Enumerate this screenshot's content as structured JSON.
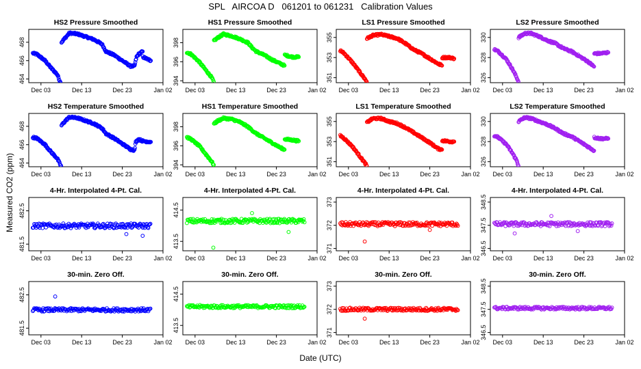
{
  "title": "SPL   AIRCOA D   061201 to 061231   Calibration Values",
  "ylabel": "Measured CO2 (ppm)",
  "xlabel": "Date (UTC)",
  "x_ticks": [
    {
      "label": "Dec 03",
      "day": 3
    },
    {
      "label": "Dec 13",
      "day": 13
    },
    {
      "label": "Dec 23",
      "day": 23
    },
    {
      "label": "Jan 02",
      "day": 33
    }
  ],
  "colors": {
    "HS2": "#0000ff",
    "HS1": "#00ff00",
    "LS1": "#ff0000",
    "LS2": "#a020f0"
  },
  "chart_data": [
    {
      "type": "scatter",
      "row": 0,
      "col": 0,
      "title": "HS2 Pressure Smoothed",
      "series": "HS2",
      "kind": "smooth",
      "ylim": [
        463.6,
        469.4
      ],
      "yticks": [
        464,
        466,
        468
      ],
      "points": [
        [
          1,
          466.8
        ],
        [
          2,
          466.7
        ],
        [
          4,
          466.0
        ],
        [
          5.5,
          465.2
        ],
        [
          7,
          464.5
        ],
        [
          8,
          463.4
        ],
        [
          8.05,
          468.0
        ],
        [
          8.8,
          468.4
        ],
        [
          10,
          469.0
        ],
        [
          12,
          468.9
        ],
        [
          14,
          468.6
        ],
        [
          16,
          468.3
        ],
        [
          18,
          467.8
        ],
        [
          19,
          467.0
        ],
        [
          21,
          466.6
        ],
        [
          23,
          466.0
        ],
        [
          25,
          465.4
        ],
        [
          26,
          465.4
        ],
        [
          26.5,
          466.4
        ],
        [
          27,
          466.7
        ],
        [
          28,
          467.0
        ],
        [
          28.05,
          466.4
        ],
        [
          29,
          466.2
        ],
        [
          30,
          466.0
        ]
      ]
    },
    {
      "type": "scatter",
      "row": 0,
      "col": 1,
      "title": "HS1 Pressure Smoothed",
      "series": "HS1",
      "kind": "smooth",
      "ylim": [
        393.8,
        399.4
      ],
      "yticks": [
        394,
        396,
        398
      ],
      "points": [
        [
          1,
          397.0
        ],
        [
          2,
          396.8
        ],
        [
          4,
          396.0
        ],
        [
          5.5,
          395.2
        ],
        [
          7,
          394.4
        ],
        [
          7.6,
          393.9
        ],
        [
          7.65,
          398.2
        ],
        [
          8.5,
          398.5
        ],
        [
          10,
          398.9
        ],
        [
          12,
          398.7
        ],
        [
          14,
          398.4
        ],
        [
          16,
          398.0
        ],
        [
          17,
          397.5
        ],
        [
          18,
          397.1
        ],
        [
          20,
          396.7
        ],
        [
          22,
          396.2
        ],
        [
          24,
          395.8
        ],
        [
          25,
          395.6
        ],
        [
          25.05,
          396.7
        ],
        [
          27,
          396.5
        ],
        [
          28.5,
          396.5
        ]
      ]
    },
    {
      "type": "scatter",
      "row": 0,
      "col": 2,
      "title": "LS1 Pressure Smoothed",
      "series": "LS1",
      "kind": "smooth",
      "ylim": [
        350.5,
        355.8
      ],
      "yticks": [
        351,
        353,
        355
      ],
      "points": [
        [
          1,
          353.7
        ],
        [
          2,
          353.4
        ],
        [
          4,
          352.5
        ],
        [
          5.5,
          351.7
        ],
        [
          7,
          350.9
        ],
        [
          7.5,
          350.6
        ],
        [
          7.55,
          354.9
        ],
        [
          9,
          355.2
        ],
        [
          11,
          355.3
        ],
        [
          13,
          355.1
        ],
        [
          15,
          354.9
        ],
        [
          17,
          354.4
        ],
        [
          19,
          353.8
        ],
        [
          21,
          353.4
        ],
        [
          23,
          352.9
        ],
        [
          25,
          352.4
        ],
        [
          26,
          352.2
        ],
        [
          26.05,
          353.0
        ],
        [
          28,
          353.0
        ],
        [
          29,
          352.9
        ]
      ]
    },
    {
      "type": "scatter",
      "row": 0,
      "col": 3,
      "title": "LS2 Pressure Smoothed",
      "series": "LS2",
      "kind": "smooth",
      "ylim": [
        325.5,
        330.8
      ],
      "yticks": [
        326,
        328,
        330
      ],
      "points": [
        [
          1,
          328.8
        ],
        [
          2,
          328.6
        ],
        [
          4,
          327.8
        ],
        [
          5.5,
          326.8
        ],
        [
          6.5,
          326.0
        ],
        [
          6.9,
          325.6
        ],
        [
          6.95,
          330.0
        ],
        [
          8.5,
          330.4
        ],
        [
          10,
          330.4
        ],
        [
          12,
          330.1
        ],
        [
          14,
          329.7
        ],
        [
          16,
          329.4
        ],
        [
          18,
          328.9
        ],
        [
          20,
          328.6
        ],
        [
          22,
          328.1
        ],
        [
          24,
          327.6
        ],
        [
          25.5,
          327.1
        ],
        [
          25.55,
          328.4
        ],
        [
          27,
          328.4
        ],
        [
          29,
          328.5
        ]
      ]
    },
    {
      "type": "scatter",
      "row": 1,
      "col": 0,
      "title": "HS2 Temperature Smoothed",
      "series": "HS2",
      "kind": "smooth",
      "ylim": [
        463.6,
        469.4
      ],
      "yticks": [
        464,
        466,
        468
      ],
      "points": [
        [
          1,
          466.8
        ],
        [
          2,
          466.7
        ],
        [
          4,
          466.0
        ],
        [
          5.5,
          465.2
        ],
        [
          7,
          464.5
        ],
        [
          8,
          463.6
        ],
        [
          8.05,
          468.1
        ],
        [
          9,
          468.6
        ],
        [
          10,
          469.0
        ],
        [
          12,
          468.9
        ],
        [
          14,
          468.6
        ],
        [
          16,
          468.3
        ],
        [
          18,
          467.8
        ],
        [
          19,
          467.2
        ],
        [
          21,
          466.7
        ],
        [
          23,
          466.1
        ],
        [
          25,
          465.5
        ],
        [
          26,
          465.4
        ],
        [
          26.3,
          466.3
        ],
        [
          27,
          466.6
        ],
        [
          28,
          466.4
        ],
        [
          30,
          466.3
        ]
      ]
    },
    {
      "type": "scatter",
      "row": 1,
      "col": 1,
      "title": "HS1 Temperature Smoothed",
      "series": "HS1",
      "kind": "smooth",
      "ylim": [
        393.8,
        399.4
      ],
      "yticks": [
        394,
        396,
        398
      ],
      "points": [
        [
          1,
          396.9
        ],
        [
          2,
          396.7
        ],
        [
          4,
          396.0
        ],
        [
          5.5,
          395.2
        ],
        [
          7,
          394.4
        ],
        [
          7.6,
          394.0
        ],
        [
          7.65,
          398.3
        ],
        [
          8.5,
          398.6
        ],
        [
          10,
          398.9
        ],
        [
          12,
          398.8
        ],
        [
          14,
          398.5
        ],
        [
          16,
          398.0
        ],
        [
          18,
          397.3
        ],
        [
          20,
          396.8
        ],
        [
          22,
          396.3
        ],
        [
          24,
          395.8
        ],
        [
          25,
          395.6
        ],
        [
          25.05,
          396.7
        ],
        [
          27,
          396.6
        ],
        [
          28.5,
          396.5
        ]
      ]
    },
    {
      "type": "scatter",
      "row": 1,
      "col": 2,
      "title": "LS1 Temperature Smoothed",
      "series": "LS1",
      "kind": "smooth",
      "ylim": [
        350.5,
        355.8
      ],
      "yticks": [
        351,
        353,
        355
      ],
      "points": [
        [
          1,
          353.6
        ],
        [
          2,
          353.3
        ],
        [
          4,
          352.5
        ],
        [
          5.5,
          351.7
        ],
        [
          7,
          350.9
        ],
        [
          7.5,
          350.6
        ],
        [
          7.55,
          354.9
        ],
        [
          9,
          355.3
        ],
        [
          11,
          355.3
        ],
        [
          13,
          355.0
        ],
        [
          15,
          354.8
        ],
        [
          17,
          354.4
        ],
        [
          19,
          353.9
        ],
        [
          21,
          353.4
        ],
        [
          23,
          352.9
        ],
        [
          25,
          352.3
        ],
        [
          26,
          352.2
        ],
        [
          26.05,
          353.1
        ],
        [
          28,
          353.0
        ],
        [
          29,
          353.0
        ]
      ]
    },
    {
      "type": "scatter",
      "row": 1,
      "col": 3,
      "title": "LS2 Temperature Smoothed",
      "series": "LS2",
      "kind": "smooth",
      "ylim": [
        325.5,
        330.8
      ],
      "yticks": [
        326,
        328,
        330
      ],
      "points": [
        [
          1,
          328.6
        ],
        [
          2,
          328.4
        ],
        [
          4,
          327.7
        ],
        [
          5.5,
          326.8
        ],
        [
          6.5,
          326.1
        ],
        [
          6.9,
          325.6
        ],
        [
          6.95,
          330.0
        ],
        [
          8.5,
          330.4
        ],
        [
          10,
          330.3
        ],
        [
          12,
          330.0
        ],
        [
          14,
          329.7
        ],
        [
          16,
          329.3
        ],
        [
          18,
          328.8
        ],
        [
          20,
          328.5
        ],
        [
          22,
          328.0
        ],
        [
          24,
          327.5
        ],
        [
          25.5,
          327.1
        ],
        [
          25.55,
          328.4
        ],
        [
          27,
          328.3
        ],
        [
          29,
          328.3
        ]
      ]
    },
    {
      "type": "scatter",
      "row": 2,
      "col": 0,
      "title": "4-Hr. Interpolated 4-Pt. Cal.",
      "series": "HS2",
      "kind": "noise",
      "ylim": [
        481.3,
        482.9
      ],
      "yticks": [
        481.5,
        482.5
      ],
      "baseline": 482.05,
      "spread": 0.07,
      "outliers": [
        [
          24,
          481.8
        ],
        [
          28,
          481.75
        ]
      ]
    },
    {
      "type": "scatter",
      "row": 2,
      "col": 1,
      "title": "4-Hr. Interpolated 4-Pt. Cal.",
      "series": "HS1",
      "kind": "noise",
      "ylim": [
        413.2,
        414.9
      ],
      "yticks": [
        413.5,
        414.5
      ],
      "baseline": 414.15,
      "spread": 0.07,
      "outliers": [
        [
          7.5,
          413.3
        ],
        [
          17,
          414.4
        ],
        [
          26,
          413.8
        ]
      ]
    },
    {
      "type": "scatter",
      "row": 2,
      "col": 2,
      "title": "4-Hr. Interpolated 4-Pt. Cal.",
      "series": "LS1",
      "kind": "noise",
      "ylim": [
        370.9,
        373.2
      ],
      "yticks": [
        371.0,
        372.0,
        373.0
      ],
      "baseline": 372.05,
      "spread": 0.09,
      "outliers": [
        [
          7,
          371.3
        ],
        [
          23,
          371.8
        ]
      ]
    },
    {
      "type": "scatter",
      "row": 2,
      "col": 3,
      "title": "4-Hr. Interpolated 4-Pt. Cal.",
      "series": "LS2",
      "kind": "noise",
      "ylim": [
        346.4,
        348.7
      ],
      "yticks": [
        346.5,
        347.5,
        348.5
      ],
      "baseline": 347.55,
      "spread": 0.09,
      "outliers": [
        [
          6,
          347.15
        ],
        [
          15,
          347.9
        ],
        [
          21.5,
          347.25
        ]
      ]
    },
    {
      "type": "scatter",
      "row": 3,
      "col": 0,
      "title": "30-min. Zero Off.",
      "series": "HS2",
      "kind": "noise",
      "ylim": [
        481.3,
        482.9
      ],
      "yticks": [
        481.5,
        482.5
      ],
      "baseline": 482.05,
      "spread": 0.05,
      "outliers": [
        [
          6.5,
          482.45
        ]
      ]
    },
    {
      "type": "scatter",
      "row": 3,
      "col": 1,
      "title": "30-min. Zero Off.",
      "series": "HS1",
      "kind": "noise",
      "ylim": [
        413.2,
        414.9
      ],
      "yticks": [
        413.5,
        414.5
      ],
      "baseline": 414.1,
      "spread": 0.05,
      "outliers": []
    },
    {
      "type": "scatter",
      "row": 3,
      "col": 2,
      "title": "30-min. Zero Off.",
      "series": "LS1",
      "kind": "noise",
      "ylim": [
        370.9,
        373.2
      ],
      "yticks": [
        371.0,
        372.0,
        373.0
      ],
      "baseline": 372.0,
      "spread": 0.07,
      "outliers": [
        [
          7,
          371.6
        ]
      ]
    },
    {
      "type": "scatter",
      "row": 3,
      "col": 3,
      "title": "30-min. Zero Off.",
      "series": "LS2",
      "kind": "noise",
      "ylim": [
        346.4,
        348.7
      ],
      "yticks": [
        346.5,
        347.5,
        348.5
      ],
      "baseline": 347.55,
      "spread": 0.06,
      "outliers": []
    }
  ]
}
